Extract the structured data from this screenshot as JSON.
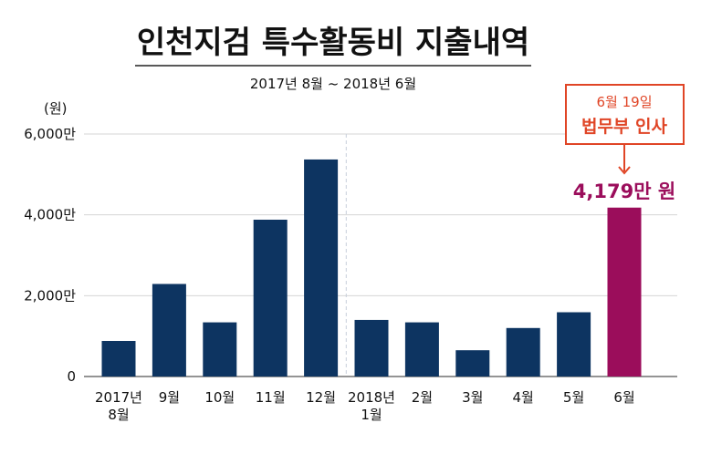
{
  "chart_data": {
    "type": "bar",
    "title": "인천지검 특수활동비 지출내역",
    "subtitle": "2017년 8월 ~ 2018년 6월",
    "ylabel": "(원)",
    "xlabel": "",
    "ylim": [
      0,
      6000
    ],
    "yticks": [
      {
        "value": 0,
        "label": "0"
      },
      {
        "value": 2000,
        "label": "2,000만"
      },
      {
        "value": 4000,
        "label": "4,000만"
      },
      {
        "value": 6000,
        "label": "6,000만"
      }
    ],
    "grid": true,
    "unit": "만 원",
    "categories": [
      [
        "2017년",
        "8월"
      ],
      [
        "9월"
      ],
      [
        "10월"
      ],
      [
        "11월"
      ],
      [
        "12월"
      ],
      [
        "2018년",
        "1월"
      ],
      [
        "2월"
      ],
      [
        "3월"
      ],
      [
        "4월"
      ],
      [
        "5월"
      ],
      [
        "6월"
      ]
    ],
    "values": [
      880,
      2290,
      1340,
      3880,
      5370,
      1400,
      1340,
      650,
      1200,
      1590,
      4179
    ],
    "bar_colors": [
      "#0d3461",
      "#0d3461",
      "#0d3461",
      "#0d3461",
      "#0d3461",
      "#0d3461",
      "#0d3461",
      "#0d3461",
      "#0d3461",
      "#0d3461",
      "#9b0d5b"
    ],
    "year_divider_after_index": 4,
    "highlight": {
      "index": 10,
      "value_label": "4,179만 원",
      "value_label_color": "#9b0d5b",
      "callout_date": "6월 19일",
      "callout_event": "법무부 인사",
      "callout_color": "#e04526"
    }
  }
}
